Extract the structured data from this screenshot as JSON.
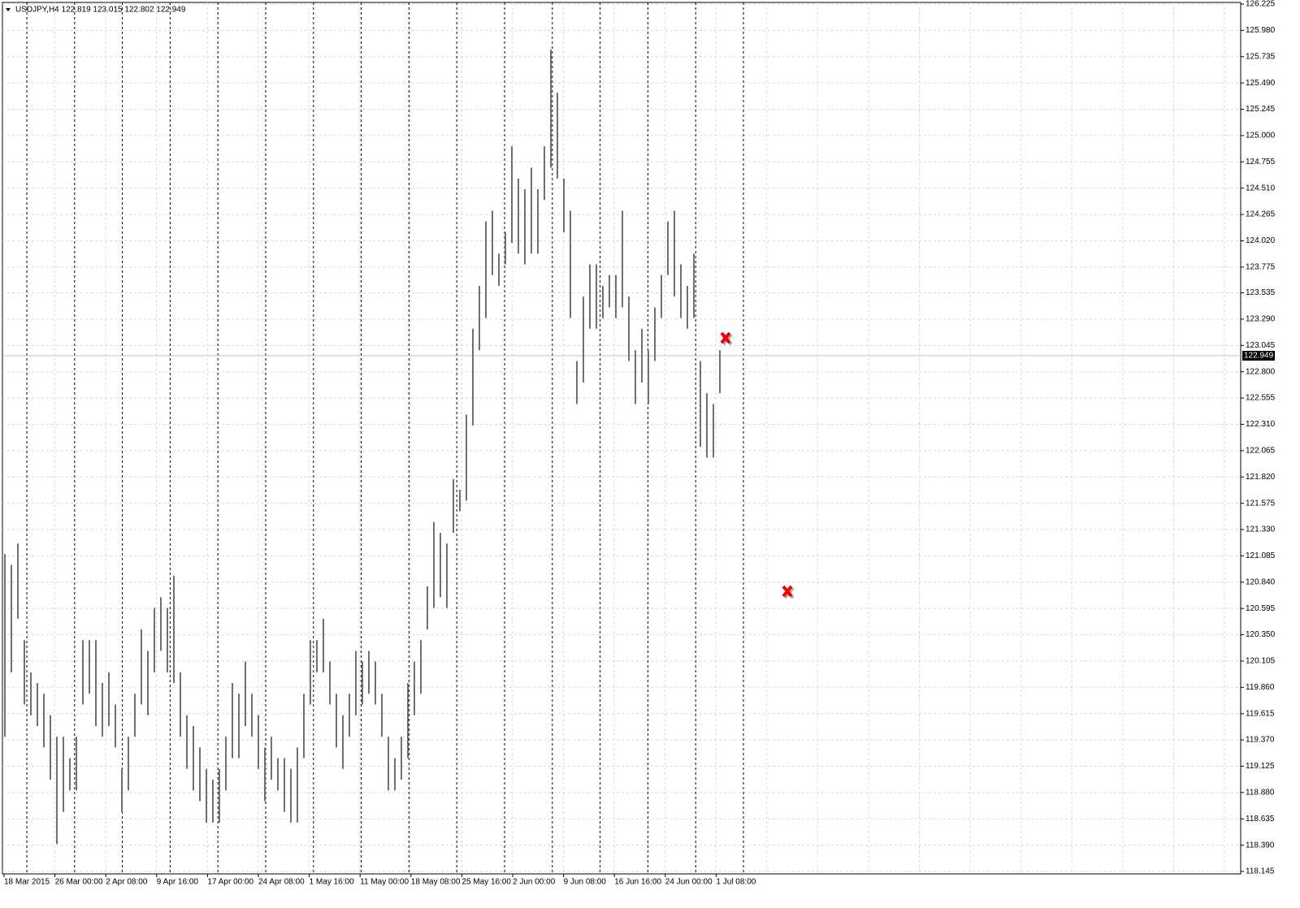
{
  "chart_data": {
    "type": "ohlc",
    "title": "USDJPY,H4  122.819 123.015 122.802 122.949",
    "color": "#707070",
    "ylim": [
      118.145,
      126.225
    ],
    "yticks": [
      126.225,
      {
        "value": 125.98,
        "label": "125.980"
      },
      125.735,
      {
        "value": 125.49,
        "label": "125.490"
      },
      125.245,
      {
        "value": 125,
        "label": "125.000"
      },
      124.755,
      {
        "value": 124.51,
        "label": "124.510"
      },
      124.265,
      {
        "value": 124.02,
        "label": "124.020"
      },
      123.775,
      123.535,
      {
        "value": 123.29,
        "label": "123.290"
      },
      123.045,
      {
        "value": 122.8,
        "label": "122.800"
      },
      122.555,
      {
        "value": 122.31,
        "label": "122.310"
      },
      122.065,
      {
        "value": 121.82,
        "label": "121.820"
      },
      121.575,
      {
        "value": 121.33,
        "label": "121.330"
      },
      121.085,
      {
        "value": 120.84,
        "label": "120.840"
      },
      120.595,
      {
        "value": 120.35,
        "label": "120.350"
      },
      {
        "value": 120.105,
        "label": "120.105"
      },
      {
        "value": 119.86,
        "label": "119.860"
      },
      119.615,
      {
        "value": 119.37,
        "label": "119.370"
      },
      119.125,
      {
        "value": 118.88,
        "label": "118.880"
      },
      118.635,
      {
        "value": 118.39,
        "label": "118.390"
      },
      118.145
    ],
    "grid": true,
    "last_price": 122.949,
    "categories": [
      "18 Mar 2015",
      "26 Mar 00:00",
      "2 Apr 08:00",
      "9 Apr 16:00",
      "17 Apr 00:00",
      "24 Apr 08:00",
      "1 May 16:00",
      "11 May 00:00",
      "18 May 08:00",
      "25 May 16:00",
      "2 Jun 00:00",
      "9 Jun 08:00",
      "16 Jun 16:00",
      "24 Jun 00:00",
      "1 Jul 08:00"
    ],
    "high": [
      121.1,
      121.0,
      121.2,
      120.3,
      120.0,
      119.9,
      119.8,
      119.6,
      119.4,
      119.4,
      119.2,
      119.4,
      120.3,
      120.3,
      120.3,
      119.9,
      120.0,
      119.7,
      119.1,
      119.4,
      119.8,
      120.4,
      120.2,
      120.6,
      120.7,
      120.6,
      120.9,
      120.0,
      119.6,
      119.5,
      119.3,
      119.1,
      119.0,
      119.1,
      119.4,
      119.9,
      119.8,
      120.1,
      119.8,
      119.6,
      119.3,
      119.4,
      119.2,
      119.2,
      119.1,
      119.3,
      119.8,
      120.3,
      120.3,
      120.5,
      120.1,
      119.8,
      119.6,
      119.8,
      120.2,
      120.1,
      120.2,
      120.1,
      119.8,
      119.4,
      119.2,
      119.4,
      119.9,
      120.1,
      120.3,
      120.8,
      121.4,
      121.3,
      121.2,
      121.8,
      121.7,
      122.4,
      123.2,
      123.6,
      124.2,
      124.3,
      123.9,
      124.1,
      124.9,
      124.6,
      124.5,
      124.7,
      124.5,
      124.9,
      125.8,
      125.4,
      124.6,
      124.3,
      122.9,
      123.5,
      123.8,
      123.8,
      123.6,
      123.7,
      123.7,
      124.3,
      123.5,
      123.0,
      123.2,
      123.0,
      123.4,
      123.7,
      124.2,
      124.3,
      123.8,
      123.6,
      123.9,
      122.9,
      122.6,
      122.5,
      123.0
    ],
    "low": [
      119.4,
      120.0,
      120.5,
      119.7,
      119.6,
      119.5,
      119.3,
      119.0,
      118.4,
      118.7,
      118.9,
      118.9,
      119.7,
      119.8,
      119.5,
      119.4,
      119.5,
      119.3,
      118.7,
      118.9,
      119.4,
      119.7,
      119.6,
      120.0,
      120.2,
      120.0,
      119.9,
      119.4,
      119.1,
      118.9,
      118.8,
      118.6,
      118.6,
      118.6,
      118.9,
      119.2,
      119.2,
      119.5,
      119.4,
      119.1,
      118.8,
      119.0,
      118.9,
      118.7,
      118.6,
      118.6,
      119.2,
      119.7,
      120.0,
      120.0,
      119.7,
      119.3,
      119.1,
      119.4,
      119.6,
      119.7,
      119.8,
      119.7,
      119.4,
      118.9,
      118.9,
      119.0,
      119.2,
      119.6,
      119.8,
      120.4,
      120.6,
      120.7,
      120.6,
      121.3,
      121.5,
      121.6,
      122.3,
      123.0,
      123.3,
      123.7,
      123.6,
      123.8,
      124.0,
      123.9,
      123.8,
      123.9,
      123.9,
      124.4,
      124.7,
      124.6,
      124.1,
      123.3,
      122.5,
      122.7,
      123.2,
      123.2,
      123.3,
      123.4,
      123.3,
      123.4,
      122.9,
      122.5,
      122.7,
      122.5,
      122.9,
      123.3,
      123.7,
      123.5,
      123.3,
      123.2,
      123.3,
      122.1,
      122.0,
      122.0,
      122.6
    ]
  }
}
